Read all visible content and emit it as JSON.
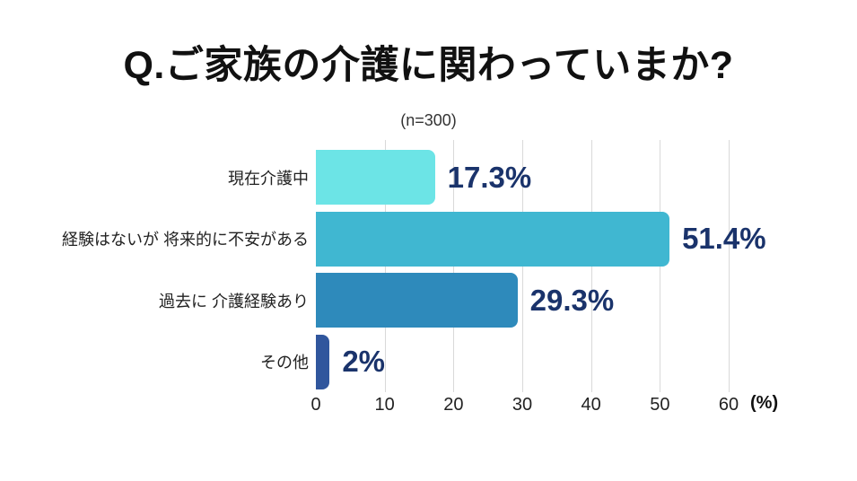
{
  "title": "Q.ご家族の介護に関わっていまか?",
  "subtitle": "(n=300)",
  "chart_data": {
    "type": "bar",
    "orientation": "horizontal",
    "title": "Q.ご家族の介護に関わっていまか?",
    "subtitle": "(n=300)",
    "categories": [
      "現在介護中",
      "経験はないが 将来的に不安がある",
      "過去に 介護経験あり",
      "その他"
    ],
    "values": [
      17.3,
      51.4,
      29.3,
      2
    ],
    "value_labels": [
      "17.3%",
      "51.4%",
      "29.3%",
      "2%"
    ],
    "bar_colors": [
      "#6CE4E6",
      "#40B7D1",
      "#2E8ABB",
      "#30569D"
    ],
    "value_label_color": "#1A336B",
    "xlabel": "(%)",
    "xlim": [
      0,
      60
    ],
    "xticks": [
      0,
      10,
      20,
      30,
      40,
      50,
      60
    ],
    "grid": true,
    "gridline_color": "#D9D9D9",
    "legend": false
  }
}
